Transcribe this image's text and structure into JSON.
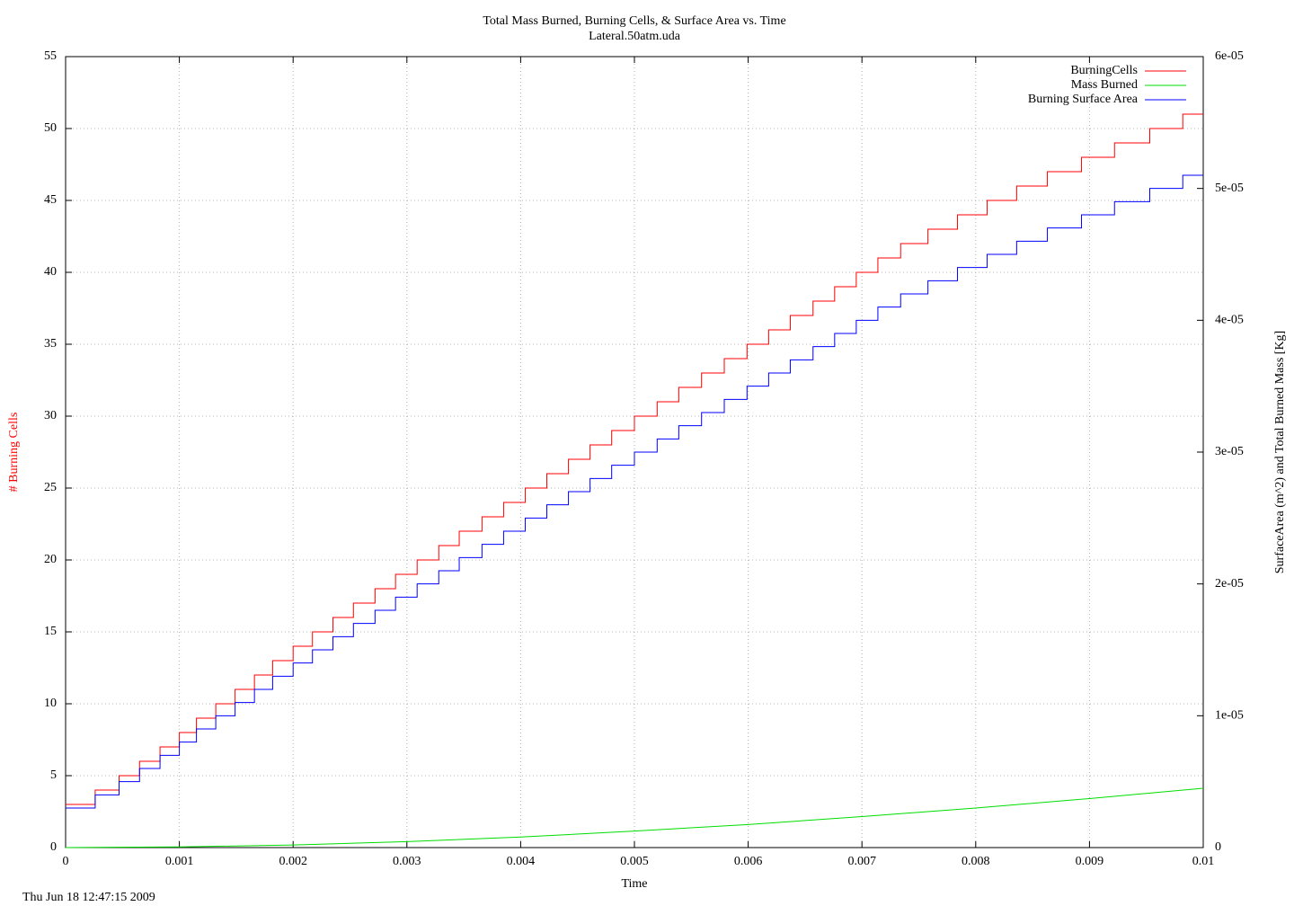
{
  "chart_data": {
    "type": "line",
    "title": "Total Mass Burned, Burning Cells, & Surface Area vs. Time",
    "subtitle": "Lateral.50atm.uda",
    "x_label": "Time",
    "y_label": "# Burning Cells",
    "y2_label": "SurfaceArea (m^2) and Total Burned Mass [Kg]",
    "timestamp": "Thu Jun 18 12:47:15 2009",
    "xlim": [
      0,
      0.01
    ],
    "xticks": [
      0,
      0.001,
      0.002,
      0.003,
      0.004,
      0.005,
      0.006,
      0.007,
      0.008,
      0.009,
      0.01
    ],
    "ylim": [
      0,
      55
    ],
    "yticks": [
      0,
      5,
      10,
      15,
      20,
      25,
      30,
      35,
      40,
      45,
      50,
      55
    ],
    "y2lim": [
      0,
      6e-05
    ],
    "y2ticks": [
      0,
      {
        "value": 1e-05,
        "label": "1e-05"
      },
      {
        "value": 2e-05,
        "label": "2e-05"
      },
      {
        "value": 3e-05,
        "label": "3e-05"
      },
      {
        "value": 4e-05,
        "label": "4e-05"
      },
      {
        "value": 5e-05,
        "label": "5e-05"
      },
      {
        "value": 6e-05,
        "label": "6e-05"
      }
    ],
    "grid": true,
    "legend": "top-right",
    "y_label_color": "#ff0000",
    "series": [
      {
        "name": "BurningCells",
        "color": "#ff0000",
        "step": true,
        "x": [
          0,
          0.00026,
          0.00047,
          0.00065,
          0.00083,
          0.001,
          0.00115,
          0.00132,
          0.00149,
          0.00166,
          0.00182,
          0.002,
          0.00217,
          0.00235,
          0.00253,
          0.00272,
          0.0029,
          0.00309,
          0.00328,
          0.00346,
          0.00366,
          0.00385,
          0.00404,
          0.00423,
          0.00442,
          0.00461,
          0.0048,
          0.005,
          0.0052,
          0.00539,
          0.00559,
          0.00579,
          0.00599,
          0.00618,
          0.00637,
          0.00657,
          0.00676,
          0.00695,
          0.00714,
          0.00734,
          0.00758,
          0.00784,
          0.0081,
          0.00836,
          0.00863,
          0.00893,
          0.00922,
          0.00953,
          0.00982,
          0.01
        ],
        "values": [
          3,
          4,
          5,
          6,
          7,
          8,
          9,
          10,
          11,
          12,
          13,
          14,
          15,
          16,
          17,
          18,
          19,
          20,
          21,
          22,
          23,
          24,
          25,
          26,
          27,
          28,
          29,
          30,
          31,
          32,
          33,
          34,
          35,
          36,
          37,
          38,
          39,
          40,
          41,
          42,
          43,
          44,
          45,
          46,
          47,
          48,
          49,
          50,
          51,
          51
        ]
      },
      {
        "name": "Mass Burned",
        "color": "#00dd00",
        "axis": "y2",
        "x": [
          0,
          0.001,
          0.002,
          0.003,
          0.004,
          0.005,
          0.006,
          0.007,
          0.008,
          0.009,
          0.01
        ],
        "values": [
          0,
          5e-08,
          2e-07,
          4.5e-07,
          8e-07,
          1.25e-06,
          1.75e-06,
          2.35e-06,
          3e-06,
          3.72e-06,
          4.5e-06
        ]
      },
      {
        "name": "Burning Surface Area",
        "color": "#0000ff",
        "axis": "y2",
        "step": true,
        "x": [
          0,
          0.00026,
          0.00047,
          0.00065,
          0.00083,
          0.001,
          0.00115,
          0.00132,
          0.00149,
          0.00166,
          0.00182,
          0.002,
          0.00217,
          0.00235,
          0.00253,
          0.00272,
          0.0029,
          0.00309,
          0.00328,
          0.00346,
          0.00366,
          0.00385,
          0.00404,
          0.00423,
          0.00442,
          0.00461,
          0.0048,
          0.005,
          0.0052,
          0.00539,
          0.00559,
          0.00579,
          0.00599,
          0.00618,
          0.00637,
          0.00657,
          0.00676,
          0.00695,
          0.00714,
          0.00734,
          0.00758,
          0.00784,
          0.0081,
          0.00836,
          0.00863,
          0.00893,
          0.00922,
          0.00953,
          0.00982,
          0.01
        ],
        "values": [
          3e-06,
          4e-06,
          5e-06,
          6e-06,
          7e-06,
          8e-06,
          9e-06,
          1e-05,
          1.1e-05,
          1.2e-05,
          1.3e-05,
          1.4e-05,
          1.5e-05,
          1.6e-05,
          1.7e-05,
          1.8e-05,
          1.9e-05,
          2e-05,
          2.1e-05,
          2.2e-05,
          2.3e-05,
          2.4e-05,
          2.5e-05,
          2.6e-05,
          2.7e-05,
          2.8e-05,
          2.9e-05,
          3e-05,
          3.1e-05,
          3.2e-05,
          3.3e-05,
          3.4e-05,
          3.5e-05,
          3.6e-05,
          3.7e-05,
          3.8e-05,
          3.9e-05,
          4e-05,
          4.1e-05,
          4.2e-05,
          4.3e-05,
          4.4e-05,
          4.5e-05,
          4.6e-05,
          4.7e-05,
          4.8e-05,
          4.9e-05,
          5e-05,
          5.1e-05,
          5.1e-05
        ]
      }
    ]
  }
}
